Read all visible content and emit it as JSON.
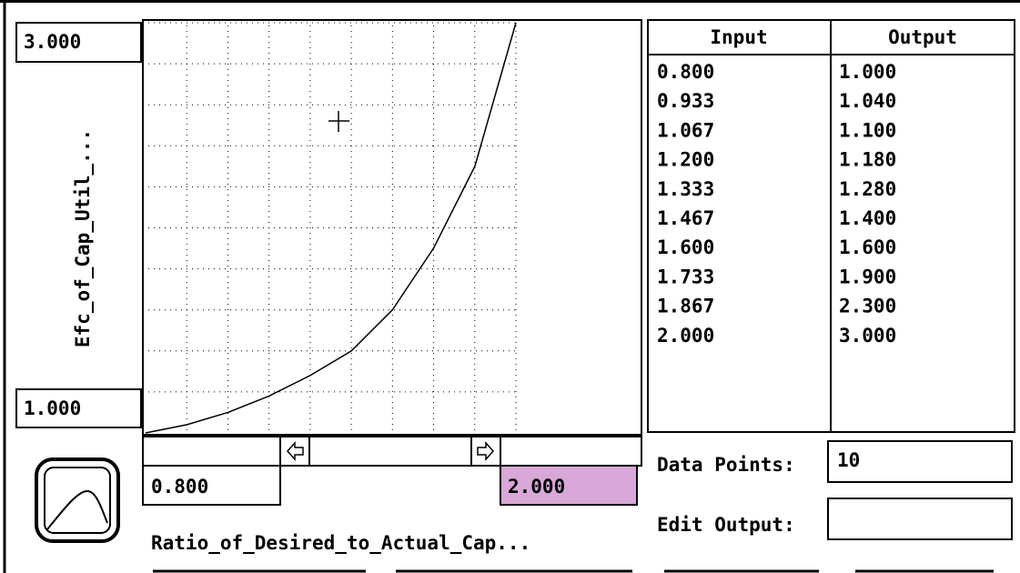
{
  "y_axis": {
    "label": "Efc_of_Cap_Util_...",
    "max": "3.000",
    "min": "1.000"
  },
  "x_axis": {
    "label": "Ratio_of_Desired_to_Actual_Cap...",
    "min": "0.800",
    "max": "2.000"
  },
  "table": {
    "headers": [
      "Input",
      "Output"
    ],
    "rows": [
      [
        "0.800",
        "1.000"
      ],
      [
        "0.933",
        "1.040"
      ],
      [
        "1.067",
        "1.100"
      ],
      [
        "1.200",
        "1.180"
      ],
      [
        "1.333",
        "1.280"
      ],
      [
        "1.467",
        "1.400"
      ],
      [
        "1.600",
        "1.600"
      ],
      [
        "1.733",
        "1.900"
      ],
      [
        "1.867",
        "2.300"
      ],
      [
        "2.000",
        "3.000"
      ]
    ]
  },
  "fields": {
    "data_points": {
      "label": "Data Points:",
      "value": "10"
    },
    "edit_output": {
      "label": "Edit Output:",
      "value": ""
    }
  }
}
